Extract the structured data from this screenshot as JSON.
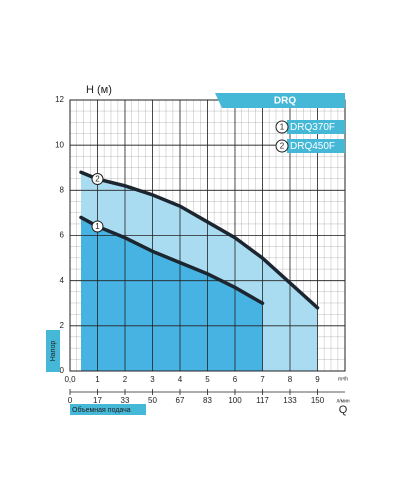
{
  "chart_data": {
    "type": "line",
    "title": "DRQ",
    "y_label": "H (м)",
    "y_side_label": "Напор",
    "x_label": "Объемная подача",
    "x_symbol": "Q",
    "x_unit": "m³/h",
    "x2_unit": "л/мин",
    "x": [
      0.4,
      1,
      2,
      3,
      4,
      5,
      6,
      7,
      8,
      9
    ],
    "series": [
      {
        "name": "DRQ370F",
        "number": "1",
        "color": "#1c2630",
        "fill": "#47b3e2",
        "values": [
          6.8,
          6.4,
          5.9,
          5.3,
          4.8,
          4.3,
          3.7,
          3.0,
          null,
          null
        ]
      },
      {
        "name": "DRQ450F",
        "number": "2",
        "color": "#1c2630",
        "fill": "#aadcf1",
        "values": [
          8.8,
          8.5,
          8.2,
          7.8,
          7.3,
          6.6,
          5.9,
          5.0,
          3.9,
          2.8
        ]
      }
    ],
    "xlim": [
      0,
      10
    ],
    "xticks": [
      {
        "value": 0,
        "label": "0,0"
      },
      1,
      2,
      3,
      4,
      5,
      6,
      7,
      8,
      9
    ],
    "x2lim": [
      0,
      166.67
    ],
    "x2ticks": [
      0,
      {
        "value": 16.67,
        "label": "17"
      },
      {
        "value": 33.33,
        "label": "33"
      },
      50,
      {
        "value": 66.67,
        "label": "67"
      },
      {
        "value": 83.33,
        "label": "83"
      },
      100,
      {
        "value": 116.67,
        "label": "117"
      },
      {
        "value": 133.33,
        "label": "133"
      },
      150
    ],
    "ylim": [
      0,
      12
    ],
    "yticks": [
      0,
      2,
      4,
      6,
      8,
      10,
      12
    ],
    "grid": true,
    "accent": "#45b8d8"
  }
}
